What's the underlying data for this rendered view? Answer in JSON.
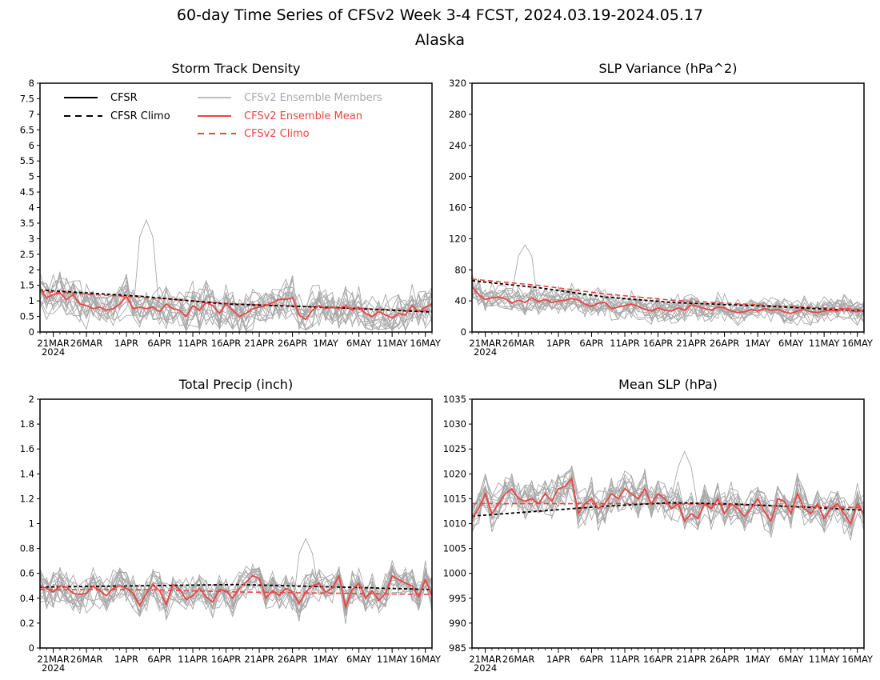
{
  "header": {
    "title": "60-day Time Series of CFSv2 Week 3-4 FCST, 2024.03.19-2024.05.17",
    "subtitle": "Alaska"
  },
  "legend": {
    "items": [
      {
        "label": "CFSR",
        "color": "#000000",
        "dash": false
      },
      {
        "label": "CFSR Climo",
        "color": "#000000",
        "dash": true
      },
      {
        "label": "CFSv2 Ensemble Members",
        "color": "#a8a8a8",
        "dash": false
      },
      {
        "label": "CFSv2 Ensemble Mean",
        "color": "#ee4444",
        "dash": false
      },
      {
        "label": "CFSv2 Climo",
        "color": "#ee4444",
        "dash": true
      }
    ]
  },
  "x_axis": {
    "tick_days": [
      2,
      7,
      13,
      18,
      23,
      28,
      33,
      38,
      43,
      48,
      53,
      58
    ],
    "tick_labels": [
      "21MAR",
      "26MAR",
      "1APR",
      "6APR",
      "11APR",
      "16APR",
      "21APR",
      "26APR",
      "1MAY",
      "6MAY",
      "11MAY",
      "16MAY"
    ],
    "year_label": "2024"
  },
  "colors": {
    "members": "#a8a8a8",
    "mean": "#ee4444",
    "climo": "#000000"
  },
  "chart_data": [
    {
      "type": "line",
      "title": "Storm Track Density",
      "ylim": [
        0,
        8
      ],
      "yticks": [
        0,
        0.5,
        1,
        1.5,
        2,
        2.5,
        3,
        3.5,
        4,
        4.5,
        5,
        5.5,
        6,
        6.5,
        7,
        7.5,
        8
      ],
      "ytick_labels": [
        "0",
        "0.5",
        "1",
        "1.5",
        "2",
        "2.5",
        "3",
        "3.5",
        "4",
        "4.5",
        "5",
        "5.5",
        "6",
        "6.5",
        "7",
        "7.5",
        "8"
      ],
      "cfsr_climo": [
        [
          0,
          1.35
        ],
        [
          15,
          1.15
        ],
        [
          28,
          0.9
        ],
        [
          45,
          0.78
        ],
        [
          59,
          0.64
        ]
      ],
      "cfsv2_climo": [
        [
          0,
          1.3
        ],
        [
          15,
          1.12
        ],
        [
          30,
          0.9
        ],
        [
          45,
          0.78
        ],
        [
          59,
          0.67
        ]
      ],
      "ensemble_mean": [
        1.4,
        1.1,
        1.2,
        1.25,
        1.05,
        1.2,
        0.9,
        0.85,
        0.75,
        0.8,
        0.7,
        0.75,
        0.9,
        1.15,
        0.75,
        0.8,
        0.75,
        0.8,
        0.65,
        0.9,
        0.75,
        0.7,
        0.5,
        0.85,
        0.7,
        0.95,
        0.85,
        0.6,
        0.9,
        0.7,
        0.5,
        0.6,
        0.75,
        0.8,
        0.85,
        0.95,
        1.05,
        1.05,
        1.1,
        0.55,
        0.4,
        0.7,
        0.85,
        0.75,
        0.8,
        0.75,
        0.85,
        0.7,
        0.8,
        0.6,
        0.5,
        0.65,
        0.55,
        0.45,
        0.6,
        0.55,
        0.85,
        0.65,
        0.8,
        0.9
      ],
      "member_spread": 0.55,
      "member_min": 0,
      "member_peak": 3.6
    },
    {
      "type": "line",
      "title": "SLP Variance (hPa^2)",
      "ylim": [
        0,
        320
      ],
      "yticks": [
        0,
        40,
        80,
        120,
        160,
        200,
        240,
        280,
        320
      ],
      "ytick_labels": [
        "0",
        "40",
        "80",
        "120",
        "160",
        "200",
        "240",
        "280",
        "320"
      ],
      "cfsr_climo": [
        [
          0,
          66
        ],
        [
          10,
          57
        ],
        [
          20,
          45
        ],
        [
          30,
          38
        ],
        [
          45,
          33
        ],
        [
          59,
          27
        ]
      ],
      "cfsv2_climo": [
        [
          0,
          68
        ],
        [
          10,
          60
        ],
        [
          20,
          49
        ],
        [
          30,
          41
        ],
        [
          45,
          34
        ],
        [
          59,
          29
        ]
      ],
      "ensemble_mean": [
        58,
        48,
        42,
        44,
        45,
        43,
        37,
        41,
        38,
        44,
        39,
        42,
        38,
        40,
        41,
        43,
        41,
        36,
        33,
        37,
        38,
        30,
        32,
        34,
        36,
        33,
        29,
        27,
        31,
        28,
        27,
        31,
        28,
        35,
        33,
        30,
        28,
        32,
        31,
        27,
        25,
        26,
        29,
        27,
        30,
        28,
        29,
        26,
        24,
        27,
        29,
        26,
        25,
        27,
        28,
        27,
        30,
        27,
        26,
        28
      ],
      "member_spread": 14,
      "member_min": 8,
      "member_peak": 112
    },
    {
      "type": "line",
      "title": "Total Precip (inch)",
      "ylim": [
        0,
        2
      ],
      "yticks": [
        0,
        0.2,
        0.4,
        0.6,
        0.8,
        1,
        1.2,
        1.4,
        1.6,
        1.8,
        2
      ],
      "ytick_labels": [
        "0",
        "0.2",
        "0.4",
        "0.6",
        "0.8",
        "1",
        "1.2",
        "1.4",
        "1.6",
        "1.8",
        "2"
      ],
      "cfsr_climo": [
        [
          0,
          0.49
        ],
        [
          15,
          0.5
        ],
        [
          30,
          0.51
        ],
        [
          45,
          0.49
        ],
        [
          59,
          0.47
        ]
      ],
      "cfsv2_climo": [
        [
          0,
          0.47
        ],
        [
          15,
          0.47
        ],
        [
          30,
          0.45
        ],
        [
          45,
          0.44
        ],
        [
          59,
          0.43
        ]
      ],
      "ensemble_mean": [
        0.5,
        0.48,
        0.45,
        0.5,
        0.49,
        0.44,
        0.43,
        0.44,
        0.5,
        0.46,
        0.42,
        0.48,
        0.5,
        0.48,
        0.44,
        0.34,
        0.44,
        0.51,
        0.46,
        0.35,
        0.51,
        0.47,
        0.39,
        0.42,
        0.48,
        0.41,
        0.37,
        0.47,
        0.46,
        0.4,
        0.48,
        0.53,
        0.58,
        0.56,
        0.4,
        0.46,
        0.42,
        0.48,
        0.45,
        0.36,
        0.45,
        0.5,
        0.52,
        0.45,
        0.48,
        0.58,
        0.33,
        0.47,
        0.52,
        0.4,
        0.46,
        0.38,
        0.44,
        0.58,
        0.55,
        0.52,
        0.5,
        0.41,
        0.55,
        0.42
      ],
      "member_spread": 0.12,
      "member_min": 0.17,
      "member_peak": 0.88
    },
    {
      "type": "line",
      "title": "Mean SLP (hPa)",
      "ylim": [
        985,
        1035
      ],
      "yticks": [
        985,
        990,
        995,
        1000,
        1005,
        1010,
        1015,
        1020,
        1025,
        1030,
        1035
      ],
      "ytick_labels": [
        "985",
        "990",
        "995",
        "1000",
        "1005",
        "1010",
        "1015",
        "1020",
        "1025",
        "1030",
        "1035"
      ],
      "cfsr_climo": [
        [
          0,
          1011.5
        ],
        [
          8,
          1012.3
        ],
        [
          20,
          1013.5
        ],
        [
          30,
          1014.2
        ],
        [
          40,
          1013.9
        ],
        [
          50,
          1013.3
        ],
        [
          59,
          1012.7
        ]
      ],
      "cfsv2_climo": [
        [
          0,
          1014
        ],
        [
          15,
          1014
        ],
        [
          30,
          1014
        ],
        [
          45,
          1013.6
        ],
        [
          59,
          1013.2
        ]
      ],
      "ensemble_mean": [
        1011,
        1013,
        1016,
        1012,
        1014,
        1016,
        1017,
        1015,
        1014.5,
        1015,
        1014,
        1016,
        1014.5,
        1017,
        1017.5,
        1019,
        1012,
        1014,
        1015,
        1013,
        1014,
        1016,
        1015,
        1017,
        1016,
        1015,
        1017,
        1014,
        1016,
        1015,
        1013,
        1014,
        1010.5,
        1012,
        1011,
        1014,
        1013,
        1015,
        1012,
        1014,
        1013,
        1011.5,
        1013,
        1015,
        1012.5,
        1010.5,
        1015,
        1014.5,
        1012,
        1016,
        1013,
        1012,
        1014,
        1011,
        1013,
        1014,
        1012,
        1010,
        1014,
        1012
      ],
      "member_spread": 3.2,
      "member_min": 1001,
      "member_peak": 1024.5
    }
  ]
}
